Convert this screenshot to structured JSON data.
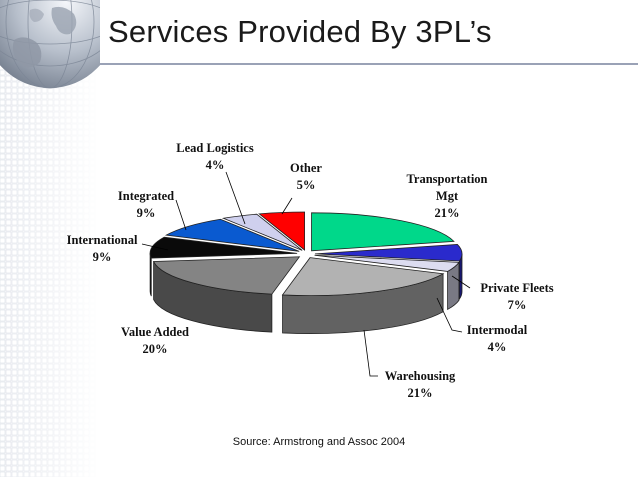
{
  "slide": {
    "title": "Services Provided By 3PL’s",
    "source": "Source: Armstrong and Assoc 2004"
  },
  "chart_data": {
    "type": "pie",
    "style": "3d-exploded",
    "legend": "none",
    "slices": [
      {
        "label_lines": [
          "Transportation",
          "Mgt"
        ],
        "percent_text": "21%",
        "value": 21,
        "color": "#00d88a"
      },
      {
        "label_lines": [
          "Private Fleets"
        ],
        "percent_text": "7%",
        "value": 7,
        "color": "#2a2acc"
      },
      {
        "label_lines": [
          "Intermodal"
        ],
        "percent_text": "4%",
        "value": 4,
        "color": "#dcdcf0"
      },
      {
        "label_lines": [
          "Warehousing"
        ],
        "percent_text": "21%",
        "value": 21,
        "color": "#b2b2b2"
      },
      {
        "label_lines": [
          "Value Added"
        ],
        "percent_text": "20%",
        "value": 20,
        "color": "#848484"
      },
      {
        "label_lines": [
          "International"
        ],
        "percent_text": "9%",
        "value": 9,
        "color": "#0a0a0a"
      },
      {
        "label_lines": [
          "Integrated"
        ],
        "percent_text": "9%",
        "value": 9,
        "color": "#0a5ad0"
      },
      {
        "label_lines": [
          "Lead Logistics"
        ],
        "percent_text": "4%",
        "value": 4,
        "color": "#cfd0ee"
      },
      {
        "label_lines": [
          "Other"
        ],
        "percent_text": "5%",
        "value": 5,
        "color": "#ff0000"
      }
    ]
  }
}
